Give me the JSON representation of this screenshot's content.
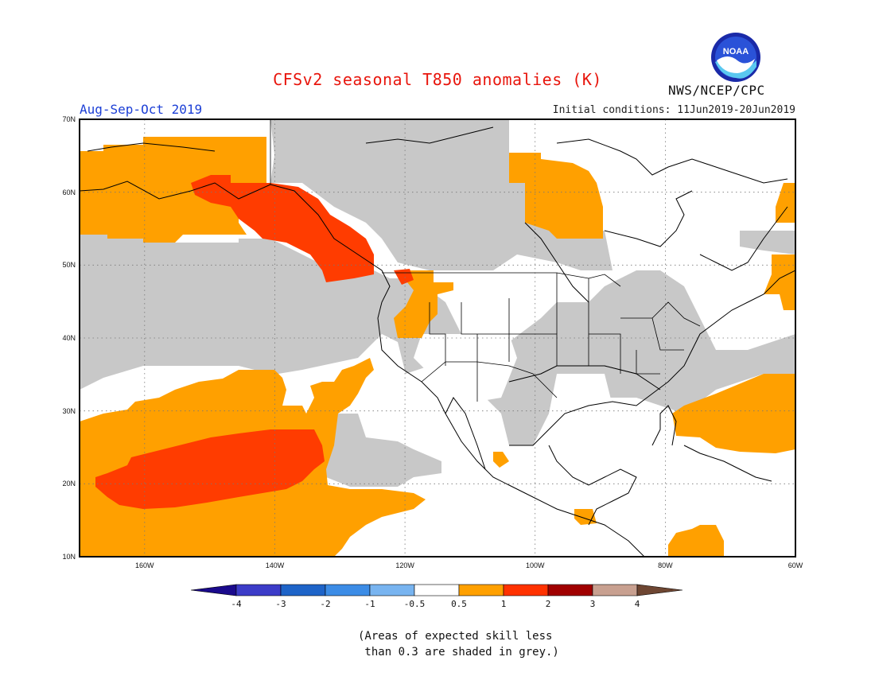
{
  "title": "CFSv2 seasonal T850 anomalies (K)",
  "period": "Aug-Sep-Oct 2019",
  "initial_conditions": "Initial conditions: 11Jun2019-20Jun2019",
  "agency": "NWS/NCEP/CPC",
  "logo_text": "NOAA",
  "lat_labels": [
    "70N",
    "60N",
    "50N",
    "40N",
    "30N",
    "20N",
    "10N"
  ],
  "lon_labels": [
    "160W",
    "140W",
    "120W",
    "100W",
    "80W",
    "60W"
  ],
  "colorbar": {
    "labels": [
      "-4",
      "-3",
      "-2",
      "-1",
      "-0.5",
      "0.5",
      "1",
      "2",
      "3",
      "4"
    ],
    "colors": [
      "#1a0a8c",
      "#3c3cc8",
      "#1e64c8",
      "#3c8ce6",
      "#78b4f0",
      "#ffffff",
      "#ffa000",
      "#ff3200",
      "#a00000",
      "#c8a090",
      "#6e4632"
    ]
  },
  "legend_colors": {
    "grey_low_skill": "#c8c8c8",
    "anomaly_0_5_to_1": "#ffa000",
    "anomaly_1_to_2": "#ff3c00"
  },
  "note": "(Areas of expected skill less\n than 0.3 are shaded in grey.)"
}
